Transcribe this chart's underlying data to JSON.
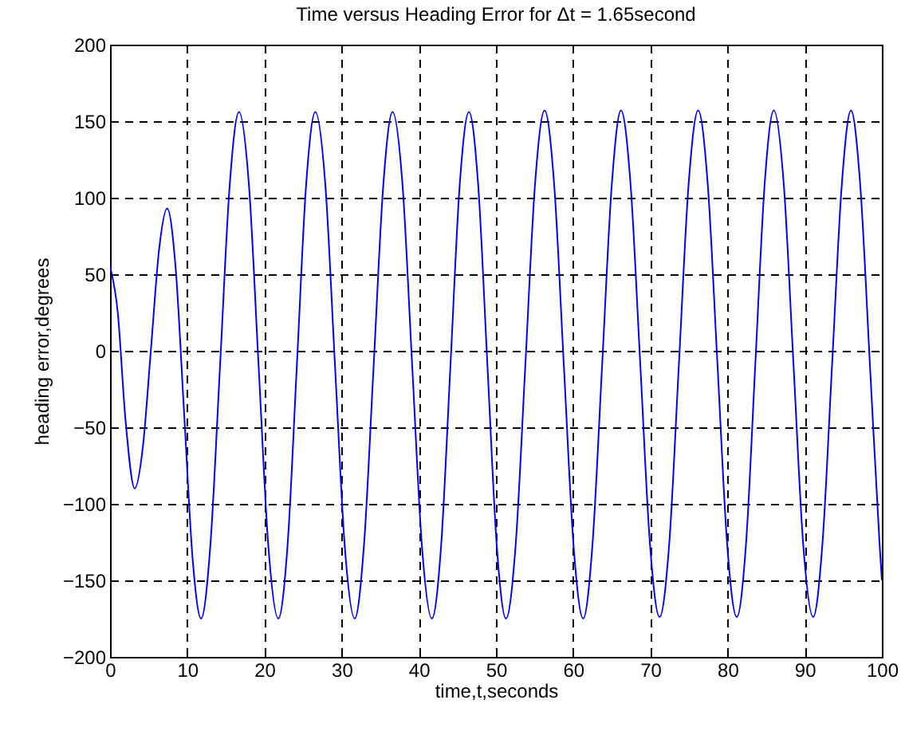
{
  "chart_data": {
    "type": "line",
    "title": "Time versus Heading Error for Δt = 1.65second",
    "xlabel": "time,t,seconds",
    "ylabel": "heading error,degrees",
    "x": [
      0,
      1,
      2,
      3.2,
      4.25,
      5.3,
      6.35,
      7.4,
      8.5,
      9.6,
      10.7,
      11.8,
      13.0,
      14.25,
      15.5,
      16.7,
      18.0,
      19.25,
      20.5,
      21.8,
      23.0,
      24.2,
      25.4,
      26.6,
      27.9,
      29.15,
      30.4,
      31.7,
      32.9,
      34.15,
      35.4,
      36.6,
      37.9,
      39.15,
      40.4,
      41.7,
      42.9,
      44.1,
      45.3,
      46.5,
      47.7,
      48.9,
      50.1,
      51.3,
      52.55,
      53.8,
      55.05,
      56.3,
      57.55,
      58.8,
      60.05,
      61.3,
      62.5,
      63.75,
      65.0,
      66.2,
      67.45,
      68.7,
      69.95,
      71.2,
      72.45,
      73.7,
      74.95,
      76.2,
      77.45,
      78.7,
      79.95,
      81.2,
      82.4,
      83.6,
      84.8,
      86.0,
      87.3,
      88.55,
      89.8,
      91.1,
      92.3,
      93.55,
      94.8,
      96.0,
      97.2,
      98.45,
      99.7,
      100
    ],
    "series": [
      {
        "color": "#0000ff",
        "values": [
          55,
          25,
          -45,
          -90,
          -63,
          1,
          66,
          93,
          54,
          -41,
          -136,
          -175,
          -127,
          -10,
          108,
          156,
          108,
          -10,
          -127,
          -175,
          -127,
          -10,
          108,
          156,
          108,
          -10,
          -127,
          -175,
          -127,
          -10,
          108,
          156,
          108,
          -10,
          -127,
          -175,
          -127,
          -10,
          108,
          156,
          108,
          -10,
          -127,
          -175,
          -127,
          -10,
          108,
          157,
          108,
          -10,
          -127,
          -175,
          -127,
          -10,
          108,
          157,
          108,
          -9,
          -126,
          -174,
          -126,
          -9,
          108,
          157,
          108,
          -9,
          -126,
          -174,
          -126,
          -9,
          108,
          157,
          108,
          -9,
          -126,
          -174,
          -126,
          -9,
          108,
          157,
          108,
          -9,
          -126,
          -150
        ]
      }
    ],
    "xlim": [
      0,
      100
    ],
    "xticks": [
      0,
      10,
      20,
      30,
      40,
      50,
      60,
      70,
      80,
      90,
      100
    ],
    "ylim": [
      -200,
      200
    ],
    "yticks": [
      -200,
      -150,
      -100,
      -50,
      0,
      50,
      100,
      150,
      200
    ],
    "grid": true,
    "line_style": "solid",
    "marker": "none"
  }
}
